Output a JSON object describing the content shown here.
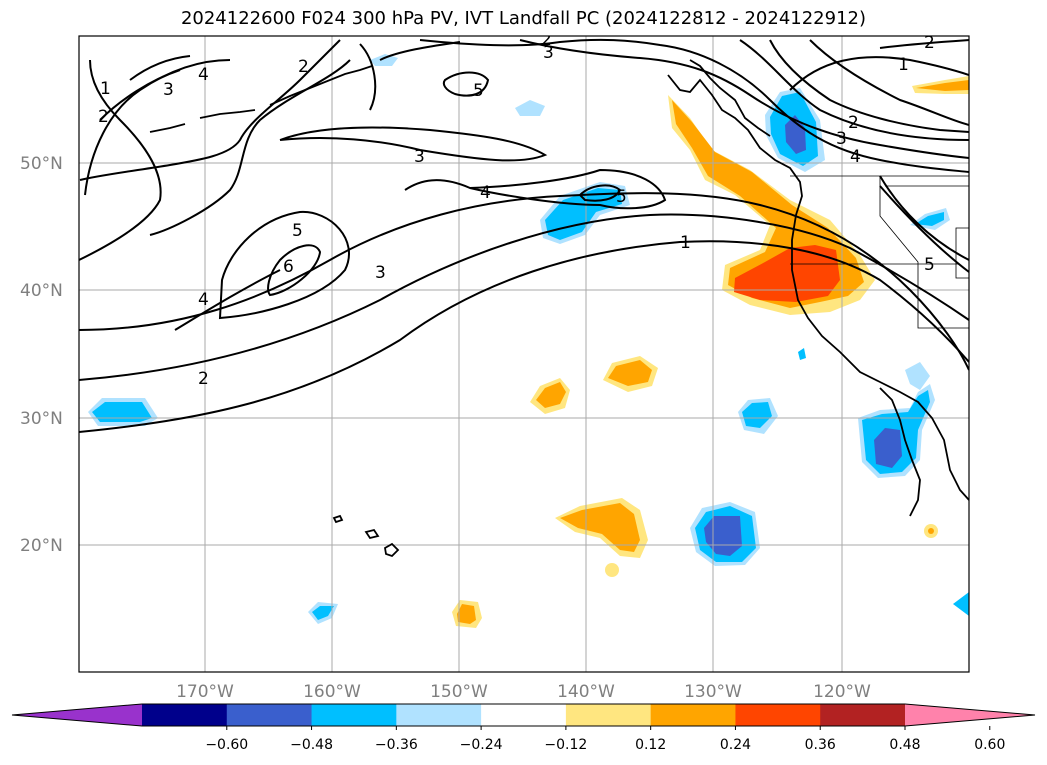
{
  "title": "2024122600 F024 300 hPa PV, IVT Landfall PC (2024122812 - 2024122912)",
  "lat_labels": [
    "50°N",
    "40°N",
    "30°N",
    "20°N"
  ],
  "lon_labels": [
    "170°W",
    "160°W",
    "150°W",
    "140°W",
    "130°W",
    "120°W"
  ],
  "colorbar": {
    "ticks": [
      "−0.60",
      "−0.48",
      "−0.36",
      "−0.24",
      "−0.12",
      "0.12",
      "0.24",
      "0.36",
      "0.48",
      "0.60"
    ],
    "colors": [
      "#9932cc",
      "#00008b",
      "#3a5fcd",
      "#00bfff",
      "#b0e2ff",
      "#ffffff",
      "#ffe680",
      "#ffa500",
      "#ff4500",
      "#b22222",
      "#ff82ab"
    ]
  },
  "contour_labels": [
    "1",
    "2",
    "3",
    "4",
    "5",
    "6",
    "2",
    "3",
    "4",
    "5",
    "3",
    "2",
    "1",
    "3",
    "4",
    "5",
    "2",
    "4",
    "2",
    "5",
    "3",
    "1",
    "2",
    "4"
  ]
}
